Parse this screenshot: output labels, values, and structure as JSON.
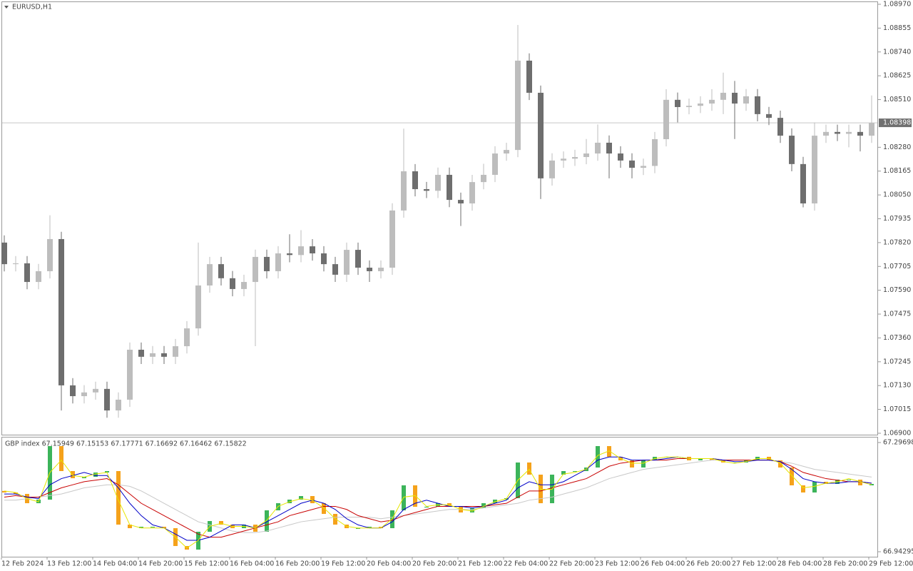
{
  "chart_data": [
    {
      "type": "candlestick",
      "title": "EURUSD,H1",
      "categories": [
        "12 Feb 2024",
        null,
        null,
        null,
        "13 Feb 12:00",
        null,
        null,
        null,
        "14 Feb 04:00",
        null,
        null,
        null,
        "14 Feb 20:00",
        null,
        null,
        null,
        "15 Feb 12:00",
        null,
        null,
        null,
        "16 Feb 04:00",
        null,
        null,
        null,
        "16 Feb 20:00",
        null,
        null,
        null,
        "19 Feb 12:00",
        null,
        null,
        null,
        "20 Feb 04:00",
        null,
        null,
        null,
        "20 Feb 20:00",
        null,
        null,
        null,
        "21 Feb 12:00",
        null,
        null,
        null,
        "22 Feb 04:00",
        null,
        null,
        null,
        "22 Feb 20:00",
        null,
        null,
        null,
        "23 Feb 12:00",
        null,
        null,
        null,
        "26 Feb 04:00",
        null,
        null,
        null,
        "26 Feb 20:00",
        null,
        null,
        null,
        "27 Feb 12:00",
        null,
        null,
        null,
        "28 Feb 04:00",
        null,
        null,
        null,
        "28 Feb 20:00",
        null,
        null,
        null,
        "29 Feb 12:00"
      ],
      "open": [
        1.0782,
        1.07716,
        1.0772,
        1.0763,
        1.07682,
        1.07837,
        1.07131,
        1.07079,
        1.07097,
        1.07114,
        1.0701,
        1.07062,
        1.07303,
        1.07269,
        1.07286,
        1.07269,
        1.0732,
        1.07406,
        1.07613,
        1.07716,
        1.07648,
        1.07596,
        1.0763,
        1.07751,
        1.07682,
        1.07768,
        1.0776,
        1.07802,
        1.07768,
        1.07716,
        1.07665,
        1.07785,
        1.07699,
        1.07682,
        1.07699,
        1.07975,
        1.08164,
        1.08078,
        1.0807,
        1.08147,
        1.08026,
        1.08009,
        1.08112,
        1.08147,
        1.0825,
        1.08267,
        1.08698,
        1.08543,
        1.0813,
        1.08216,
        1.08225,
        1.08233,
        1.0825,
        1.08302,
        1.0825,
        1.08216,
        1.08181,
        1.0819,
        1.08319,
        1.08509,
        1.08474,
        1.0848,
        1.08491,
        1.08509,
        1.08543,
        1.08491,
        1.08526,
        1.0844,
        1.08422,
        1.08336,
        1.08199,
        1.08009,
        1.08336,
        1.08354,
        1.08345,
        1.08354,
        1.08336
      ],
      "high": [
        1.07855,
        1.07755,
        1.07755,
        1.07717,
        1.07952,
        1.07872,
        1.07166,
        1.07132,
        1.07149,
        1.07149,
        1.07097,
        1.07338,
        1.07338,
        1.07321,
        1.07321,
        1.07355,
        1.07441,
        1.0782,
        1.07751,
        1.07751,
        1.07683,
        1.07665,
        1.07786,
        1.07786,
        1.07803,
        1.0786,
        1.0788,
        1.07837,
        1.07803,
        1.07751,
        1.0782,
        1.0782,
        1.07734,
        1.07734,
        1.0801,
        1.0837,
        1.08199,
        1.08113,
        1.08182,
        1.08182,
        1.08061,
        1.08147,
        1.082,
        1.08285,
        1.08302,
        1.0887,
        1.08733,
        1.08578,
        1.08251,
        1.0826,
        1.08268,
        1.0832,
        1.0839,
        1.08337,
        1.08285,
        1.08251,
        1.08225,
        1.08354,
        1.0856,
        1.08544,
        1.08515,
        1.08526,
        1.0856,
        1.0864,
        1.086,
        1.08561,
        1.08561,
        1.08475,
        1.08457,
        1.08371,
        1.08234,
        1.084,
        1.08389,
        1.08389,
        1.08389,
        1.08389,
        1.0853
      ],
      "low": [
        1.07681,
        1.07681,
        1.07595,
        1.07595,
        1.07647,
        1.0701,
        1.07044,
        1.07044,
        1.07062,
        1.06975,
        1.06975,
        1.07027,
        1.07234,
        1.07234,
        1.07234,
        1.07234,
        1.07285,
        1.07371,
        1.07578,
        1.07613,
        1.07561,
        1.07561,
        1.0732,
        1.07647,
        1.07647,
        1.07725,
        1.07725,
        1.07733,
        1.07681,
        1.0763,
        1.0763,
        1.07664,
        1.0763,
        1.07647,
        1.07664,
        1.0794,
        1.08043,
        1.08035,
        1.08035,
        1.07991,
        1.079,
        1.07974,
        1.08077,
        1.08112,
        1.08215,
        1.08232,
        1.08508,
        1.0803,
        1.08095,
        1.08181,
        1.0819,
        1.08198,
        1.08215,
        1.0813,
        1.08181,
        1.0813,
        1.08146,
        1.08155,
        1.08284,
        1.084,
        1.08439,
        1.08445,
        1.08456,
        1.0844,
        1.0832,
        1.08456,
        1.08405,
        1.08387,
        1.08301,
        1.08164,
        1.0799,
        1.07974,
        1.08301,
        1.0831,
        1.0828,
        1.0826,
        1.08301
      ],
      "close": [
        1.07716,
        1.0772,
        1.0763,
        1.07682,
        1.07837,
        1.07131,
        1.07079,
        1.07097,
        1.07114,
        1.0701,
        1.07062,
        1.07303,
        1.07269,
        1.07286,
        1.07269,
        1.0732,
        1.07406,
        1.07613,
        1.07716,
        1.07648,
        1.07596,
        1.0763,
        1.07751,
        1.07682,
        1.07768,
        1.0776,
        1.07802,
        1.07768,
        1.07716,
        1.07665,
        1.07785,
        1.07699,
        1.07682,
        1.07699,
        1.07975,
        1.08164,
        1.08078,
        1.0807,
        1.08147,
        1.08026,
        1.08009,
        1.08112,
        1.08147,
        1.0825,
        1.08267,
        1.08698,
        1.08543,
        1.0813,
        1.08216,
        1.08225,
        1.08233,
        1.0825,
        1.08302,
        1.0825,
        1.08216,
        1.08181,
        1.0819,
        1.08319,
        1.08509,
        1.08474,
        1.0848,
        1.08491,
        1.08509,
        1.08543,
        1.08491,
        1.08526,
        1.0844,
        1.08422,
        1.08336,
        1.08199,
        1.08009,
        1.08336,
        1.08354,
        1.08345,
        1.08354,
        1.08336,
        1.08398
      ],
      "up_color": "#bdbdbd",
      "down_color": "#6e6e6e",
      "ylim": [
        1.069,
        1.0897
      ],
      "yticks": [
        {
          "value": 1.0897,
          "label": "1.08970"
        },
        1.08855,
        {
          "value": 1.0874,
          "label": "1.08740"
        },
        1.08625,
        {
          "value": 1.0851,
          "label": "1.08510"
        },
        {
          "value": 1.0828,
          "label": "1.08280"
        },
        1.08165,
        {
          "value": 1.0805,
          "label": "1.08050"
        },
        1.07935,
        {
          "value": 1.0782,
          "label": "1.07820"
        },
        1.07705,
        {
          "value": 1.0759,
          "label": "1.07590"
        },
        1.07475,
        {
          "value": 1.0736,
          "label": "1.07360"
        },
        1.07245,
        {
          "value": 1.0713,
          "label": "1.07130"
        },
        1.07015,
        {
          "value": 1.069,
          "label": "1.06900"
        }
      ],
      "current_price": 1.08398
    },
    {
      "type": "candlestick",
      "title": "GBP index 67.15949 67.15153 67.17771 67.16692 67.16462 67.15822",
      "open": [
        67.14,
        67.135,
        67.13037,
        67.10029,
        67.11186,
        67.28541,
        67.20442,
        67.18128,
        67.18591,
        67.19979,
        67.20442,
        67.03087,
        67.0193,
        67.02393,
        67.02393,
        67.0193,
        66.96145,
        66.94988,
        67.00773,
        67.04244,
        67.03087,
        67.0193,
        67.03087,
        67.00773,
        67.07715,
        67.10029,
        67.11186,
        67.12343,
        67.10029,
        67.06558,
        67.03087,
        67.0193,
        67.0193,
        67.02393,
        67.0193,
        67.07715,
        67.15814,
        67.08872,
        67.08872,
        67.10029,
        67.08872,
        67.07021,
        67.08409,
        67.10029,
        67.11186,
        67.11649,
        67.23219,
        67.19285,
        67.10029,
        67.19285,
        67.20442,
        67.20442,
        67.21599,
        67.28541,
        67.2507,
        67.23913,
        67.21599,
        67.23913,
        67.2507,
        67.2507,
        67.2507,
        67.23913,
        67.24607,
        67.23913,
        67.23219,
        67.23219,
        67.23913,
        67.2507,
        67.23913,
        67.21599,
        67.15814,
        67.135,
        67.16971,
        67.16277,
        67.17665,
        67.17665,
        67.15814
      ],
      "close": [
        67.135,
        67.13037,
        67.10029,
        67.11186,
        67.28541,
        67.20442,
        67.18128,
        67.18591,
        67.19979,
        67.20442,
        67.03087,
        67.0193,
        67.02393,
        67.02393,
        67.0193,
        66.96145,
        66.94988,
        67.00773,
        67.04244,
        67.03087,
        67.0193,
        67.03087,
        67.00773,
        67.07715,
        67.10029,
        67.11186,
        67.12343,
        67.10029,
        67.06558,
        67.03087,
        67.0193,
        67.0193,
        67.02393,
        67.0193,
        67.07715,
        67.15814,
        67.08872,
        67.08872,
        67.10029,
        67.08872,
        67.07021,
        67.08409,
        67.10029,
        67.11186,
        67.11649,
        67.23219,
        67.19285,
        67.10029,
        67.19285,
        67.20442,
        67.20442,
        67.21599,
        67.28541,
        67.2507,
        67.23913,
        67.21599,
        67.23913,
        67.2507,
        67.2507,
        67.2507,
        67.23913,
        67.24607,
        67.23913,
        67.23219,
        67.23219,
        67.23913,
        67.2507,
        67.23913,
        67.21599,
        67.15814,
        67.135,
        67.16971,
        67.16277,
        67.17665,
        67.17665,
        67.15814,
        67.16277
      ],
      "up_color": "#3cb45a",
      "down_color": "#f5a21b",
      "lines": [
        {
          "color": "#c8c8c8",
          "values": [
            67.11,
            67.11,
            67.115,
            67.12,
            67.125,
            67.13,
            67.14,
            67.15,
            67.155,
            67.16,
            67.16,
            67.155,
            67.14,
            67.12,
            67.1,
            67.08,
            67.06,
            67.04,
            67.03,
            67.02,
            67.01,
            67.005,
            67.005,
            67.01,
            67.02,
            67.03,
            67.04,
            67.045,
            67.05,
            67.055,
            67.055,
            67.055,
            67.055,
            67.05,
            67.055,
            67.06,
            67.065,
            67.07,
            67.075,
            67.08,
            67.08,
            67.08,
            67.085,
            67.09,
            67.095,
            67.1,
            67.11,
            67.115,
            67.12,
            67.13,
            67.14,
            67.15,
            67.165,
            67.18,
            67.19,
            67.2,
            67.21,
            67.215,
            67.22,
            67.225,
            67.23,
            67.235,
            67.24,
            67.24,
            67.24,
            67.24,
            67.24,
            67.24,
            67.235,
            67.23,
            67.22,
            67.21,
            67.205,
            67.2,
            67.195,
            67.19,
            67.185
          ]
        },
        {
          "color": "#c80000",
          "values": [
            67.12,
            67.125,
            67.12,
            67.12,
            67.135,
            67.15,
            67.16,
            67.17,
            67.175,
            67.18,
            67.16,
            67.13,
            67.1,
            67.08,
            67.06,
            67.04,
            67.02,
            67.0,
            66.99,
            66.99,
            67.0,
            67.01,
            67.02,
            67.03,
            67.04,
            67.06,
            67.07,
            67.08,
            67.09,
            67.09,
            67.08,
            67.06,
            67.05,
            67.04,
            67.045,
            67.06,
            67.07,
            67.08,
            67.09,
            67.09,
            67.09,
            67.09,
            67.09,
            67.095,
            67.1,
            67.12,
            67.14,
            67.14,
            67.15,
            67.16,
            67.17,
            67.18,
            67.2,
            67.22,
            67.23,
            67.235,
            67.24,
            67.24,
            67.24,
            67.245,
            67.245,
            67.245,
            67.245,
            67.24,
            67.24,
            67.24,
            67.24,
            67.24,
            67.235,
            67.22,
            67.2,
            67.19,
            67.18,
            67.175,
            67.17,
            67.17,
            67.165
          ]
        },
        {
          "color": "#0000c8",
          "values": [
            67.13,
            67.13,
            67.12,
            67.115,
            67.16,
            67.18,
            67.19,
            67.2,
            67.19,
            67.19,
            67.15,
            67.1,
            67.06,
            67.03,
            67.02,
            67.0,
            66.98,
            66.98,
            66.99,
            67.01,
            67.03,
            67.03,
            67.02,
            67.04,
            67.06,
            67.08,
            67.1,
            67.11,
            67.1,
            67.08,
            67.05,
            67.03,
            67.02,
            67.02,
            67.04,
            67.08,
            67.1,
            67.11,
            67.1,
            67.09,
            67.09,
            67.085,
            67.09,
            67.1,
            67.11,
            67.15,
            67.17,
            67.16,
            67.16,
            67.17,
            67.19,
            67.21,
            67.24,
            67.25,
            67.25,
            67.24,
            67.24,
            67.24,
            67.245,
            67.25,
            67.245,
            67.245,
            67.245,
            67.24,
            67.235,
            67.235,
            67.24,
            67.24,
            67.235,
            67.21,
            67.18,
            67.17,
            67.165,
            67.165,
            67.17,
            67.17,
            67.165
          ]
        },
        {
          "color": "#e6e600",
          "values": [
            67.14,
            67.135,
            67.115,
            67.105,
            67.2,
            67.24,
            67.19,
            67.185,
            67.195,
            67.2,
            67.11,
            67.03,
            67.02,
            67.02,
            67.02,
            66.99,
            66.955,
            66.98,
            67.025,
            67.035,
            67.025,
            67.025,
            67.02,
            67.045,
            67.09,
            67.105,
            67.115,
            67.11,
            67.085,
            67.05,
            67.025,
            67.02,
            67.02,
            67.02,
            67.05,
            67.12,
            67.125,
            67.09,
            67.095,
            67.095,
            67.08,
            67.075,
            67.09,
            67.105,
            67.115,
            67.175,
            67.21,
            67.145,
            67.145,
            67.195,
            67.2,
            67.21,
            67.255,
            67.27,
            67.245,
            67.23,
            67.23,
            67.245,
            67.25,
            67.25,
            67.245,
            67.245,
            67.245,
            67.235,
            67.23,
            67.235,
            67.245,
            67.245,
            67.23,
            67.19,
            67.15,
            67.155,
            67.165,
            67.17,
            67.18,
            67.17,
            67.16
          ]
        }
      ],
      "ylim": [
        66.94295,
        67.29698
      ],
      "yticks": [
        67.29698,
        66.94295
      ]
    }
  ]
}
